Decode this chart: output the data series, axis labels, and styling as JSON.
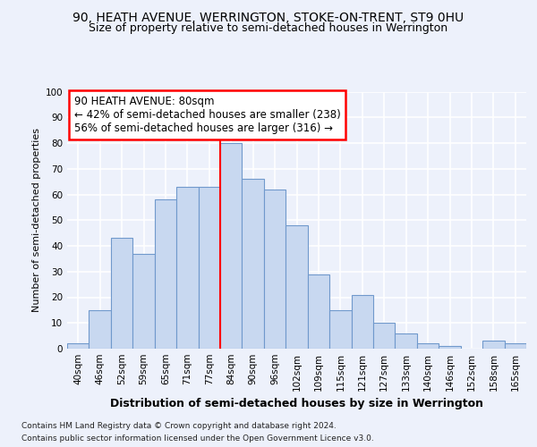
{
  "title1": "90, HEATH AVENUE, WERRINGTON, STOKE-ON-TRENT, ST9 0HU",
  "title2": "Size of property relative to semi-detached houses in Werrington",
  "xlabel": "Distribution of semi-detached houses by size in Werrington",
  "ylabel": "Number of semi-detached properties",
  "categories": [
    "40sqm",
    "46sqm",
    "52sqm",
    "59sqm",
    "65sqm",
    "71sqm",
    "77sqm",
    "84sqm",
    "90sqm",
    "96sqm",
    "102sqm",
    "109sqm",
    "115sqm",
    "121sqm",
    "127sqm",
    "133sqm",
    "140sqm",
    "146sqm",
    "152sqm",
    "158sqm",
    "165sqm"
  ],
  "values": [
    2,
    15,
    43,
    37,
    58,
    63,
    63,
    80,
    66,
    62,
    48,
    29,
    15,
    21,
    10,
    6,
    2,
    1,
    0,
    3,
    2
  ],
  "bar_color": "#c8d8f0",
  "bar_edge_color": "#7099cc",
  "redline_index": 7,
  "annotation_line1": "90 HEATH AVENUE: 80sqm",
  "annotation_line2": "← 42% of semi-detached houses are smaller (238)",
  "annotation_line3": "56% of semi-detached houses are larger (316) →",
  "footnote1": "Contains HM Land Registry data © Crown copyright and database right 2024.",
  "footnote2": "Contains public sector information licensed under the Open Government Licence v3.0.",
  "ylim": [
    0,
    100
  ],
  "bg_color": "#edf1fb",
  "grid_color": "#ffffff",
  "title_fontsize": 10,
  "subtitle_fontsize": 9,
  "xlabel_fontsize": 9,
  "ylabel_fontsize": 8,
  "tick_fontsize": 7.5,
  "annot_fontsize": 8.5,
  "footnote_fontsize": 6.5
}
